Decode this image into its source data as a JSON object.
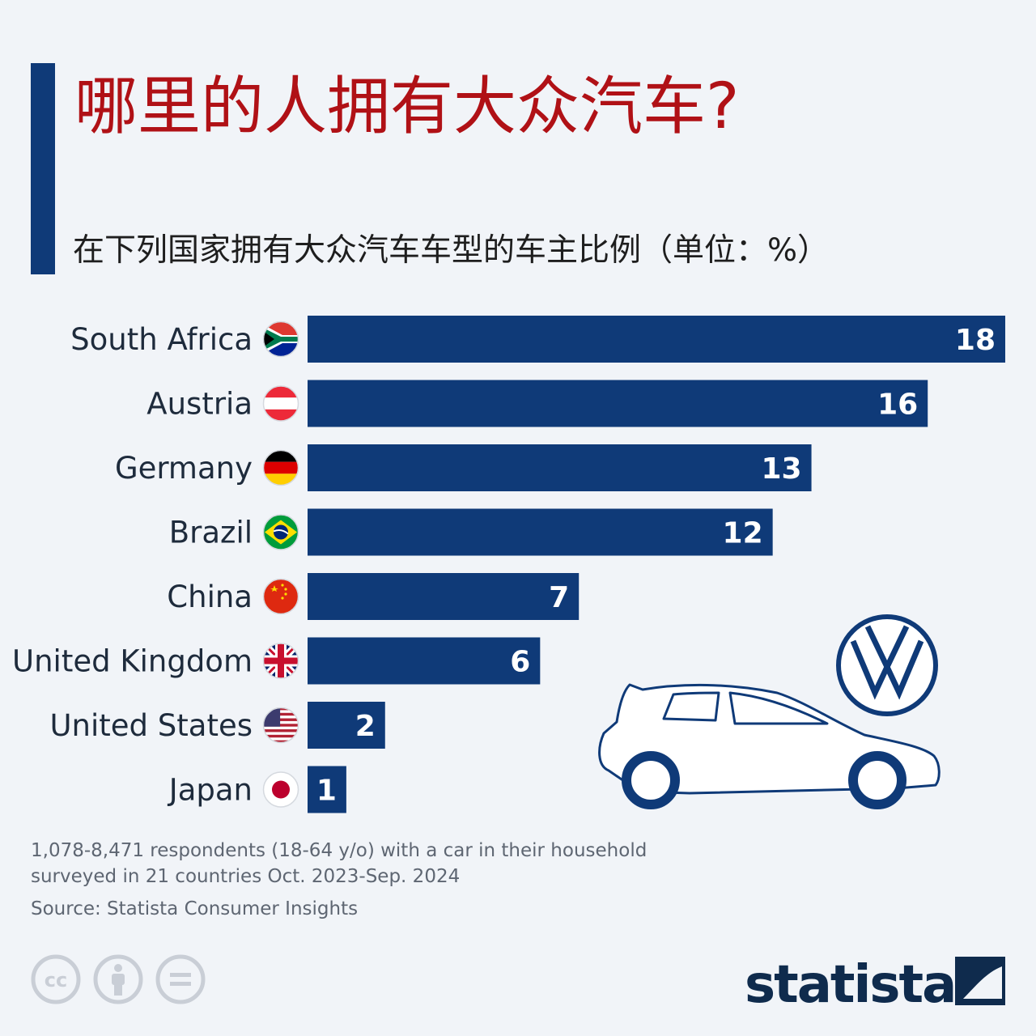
{
  "title": "哪里的人拥有大众汽车?",
  "subtitle": "在下列国家拥有大众汽车车型的车主比例（单位：%）",
  "chart_data": {
    "type": "bar",
    "orientation": "horizontal",
    "categories": [
      "South Africa",
      "Austria",
      "Germany",
      "Brazil",
      "China",
      "United Kingdom",
      "United States",
      "Japan"
    ],
    "values": [
      18,
      16,
      13,
      12,
      7,
      6,
      2,
      1
    ],
    "xlim": [
      0,
      18
    ],
    "bar_color": "#0f3a78",
    "value_label_color": "#ffffff",
    "grid": false,
    "legend": "none"
  },
  "flags": [
    "south-africa-flag-icon",
    "austria-flag-icon",
    "germany-flag-icon",
    "brazil-flag-icon",
    "china-flag-icon",
    "united-kingdom-flag-icon",
    "united-states-flag-icon",
    "japan-flag-icon"
  ],
  "notes": {
    "line1": "1,078-8,471 respondents (18-64 y/o) with a car in their household",
    "line2": "surveyed in 21 countries Oct. 2023-Sep. 2024"
  },
  "source": "Source: Statista Consumer Insights",
  "brand": "statista",
  "colors": {
    "title": "#b01116",
    "accent": "#0f3a78",
    "background": "#f1f4f8",
    "text": "#1e1e1e",
    "muted": "#5e6672"
  },
  "icons": [
    "cc-icon",
    "attribution-icon",
    "no-derivatives-icon",
    "vw-logo-icon",
    "car-icon"
  ]
}
